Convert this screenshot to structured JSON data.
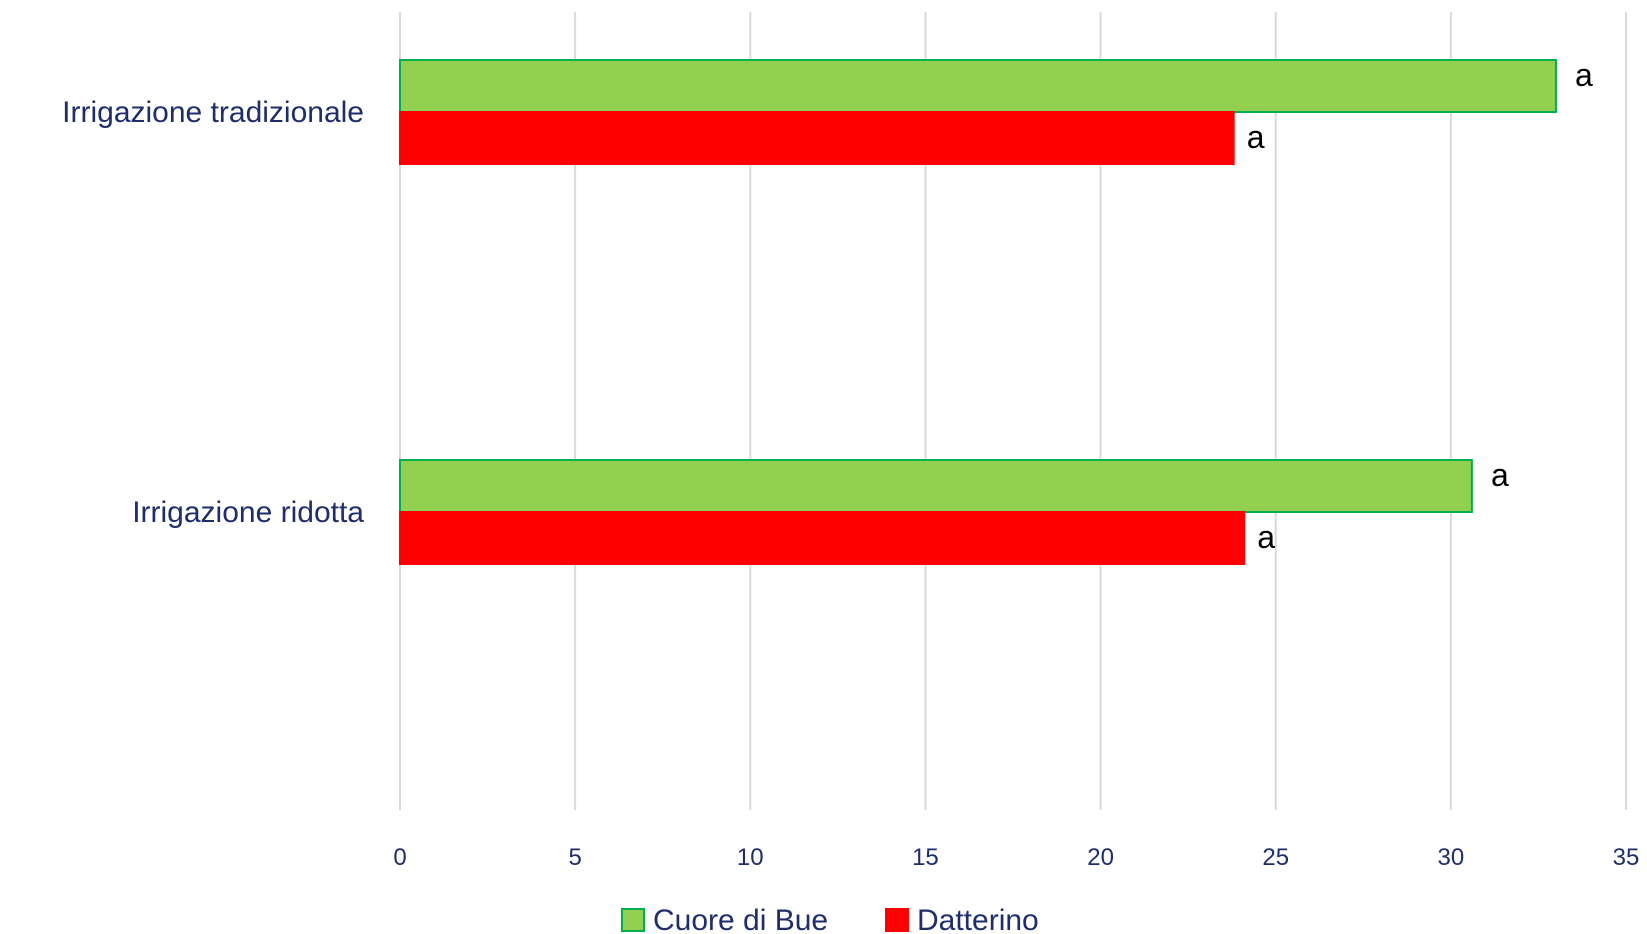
{
  "chart_data": {
    "type": "bar",
    "orientation": "horizontal",
    "categories": [
      "Irrigazione tradizionale",
      "Irrigazione ridotta"
    ],
    "series": [
      {
        "name": "Cuore di Bue",
        "values": [
          33.0,
          30.6
        ],
        "labels": [
          "a",
          "a"
        ],
        "color": "#92d050",
        "stroke": "#00b050"
      },
      {
        "name": "Datterino",
        "values": [
          23.8,
          24.1
        ],
        "labels": [
          "a",
          "a"
        ],
        "color": "#ff0000",
        "stroke": "#ff0000"
      }
    ],
    "xlim": [
      0,
      35
    ],
    "xticks": [
      "0",
      "5",
      "10",
      "15",
      "20",
      "25",
      "30",
      "35"
    ],
    "grid": true,
    "legend_position": "bottom"
  }
}
